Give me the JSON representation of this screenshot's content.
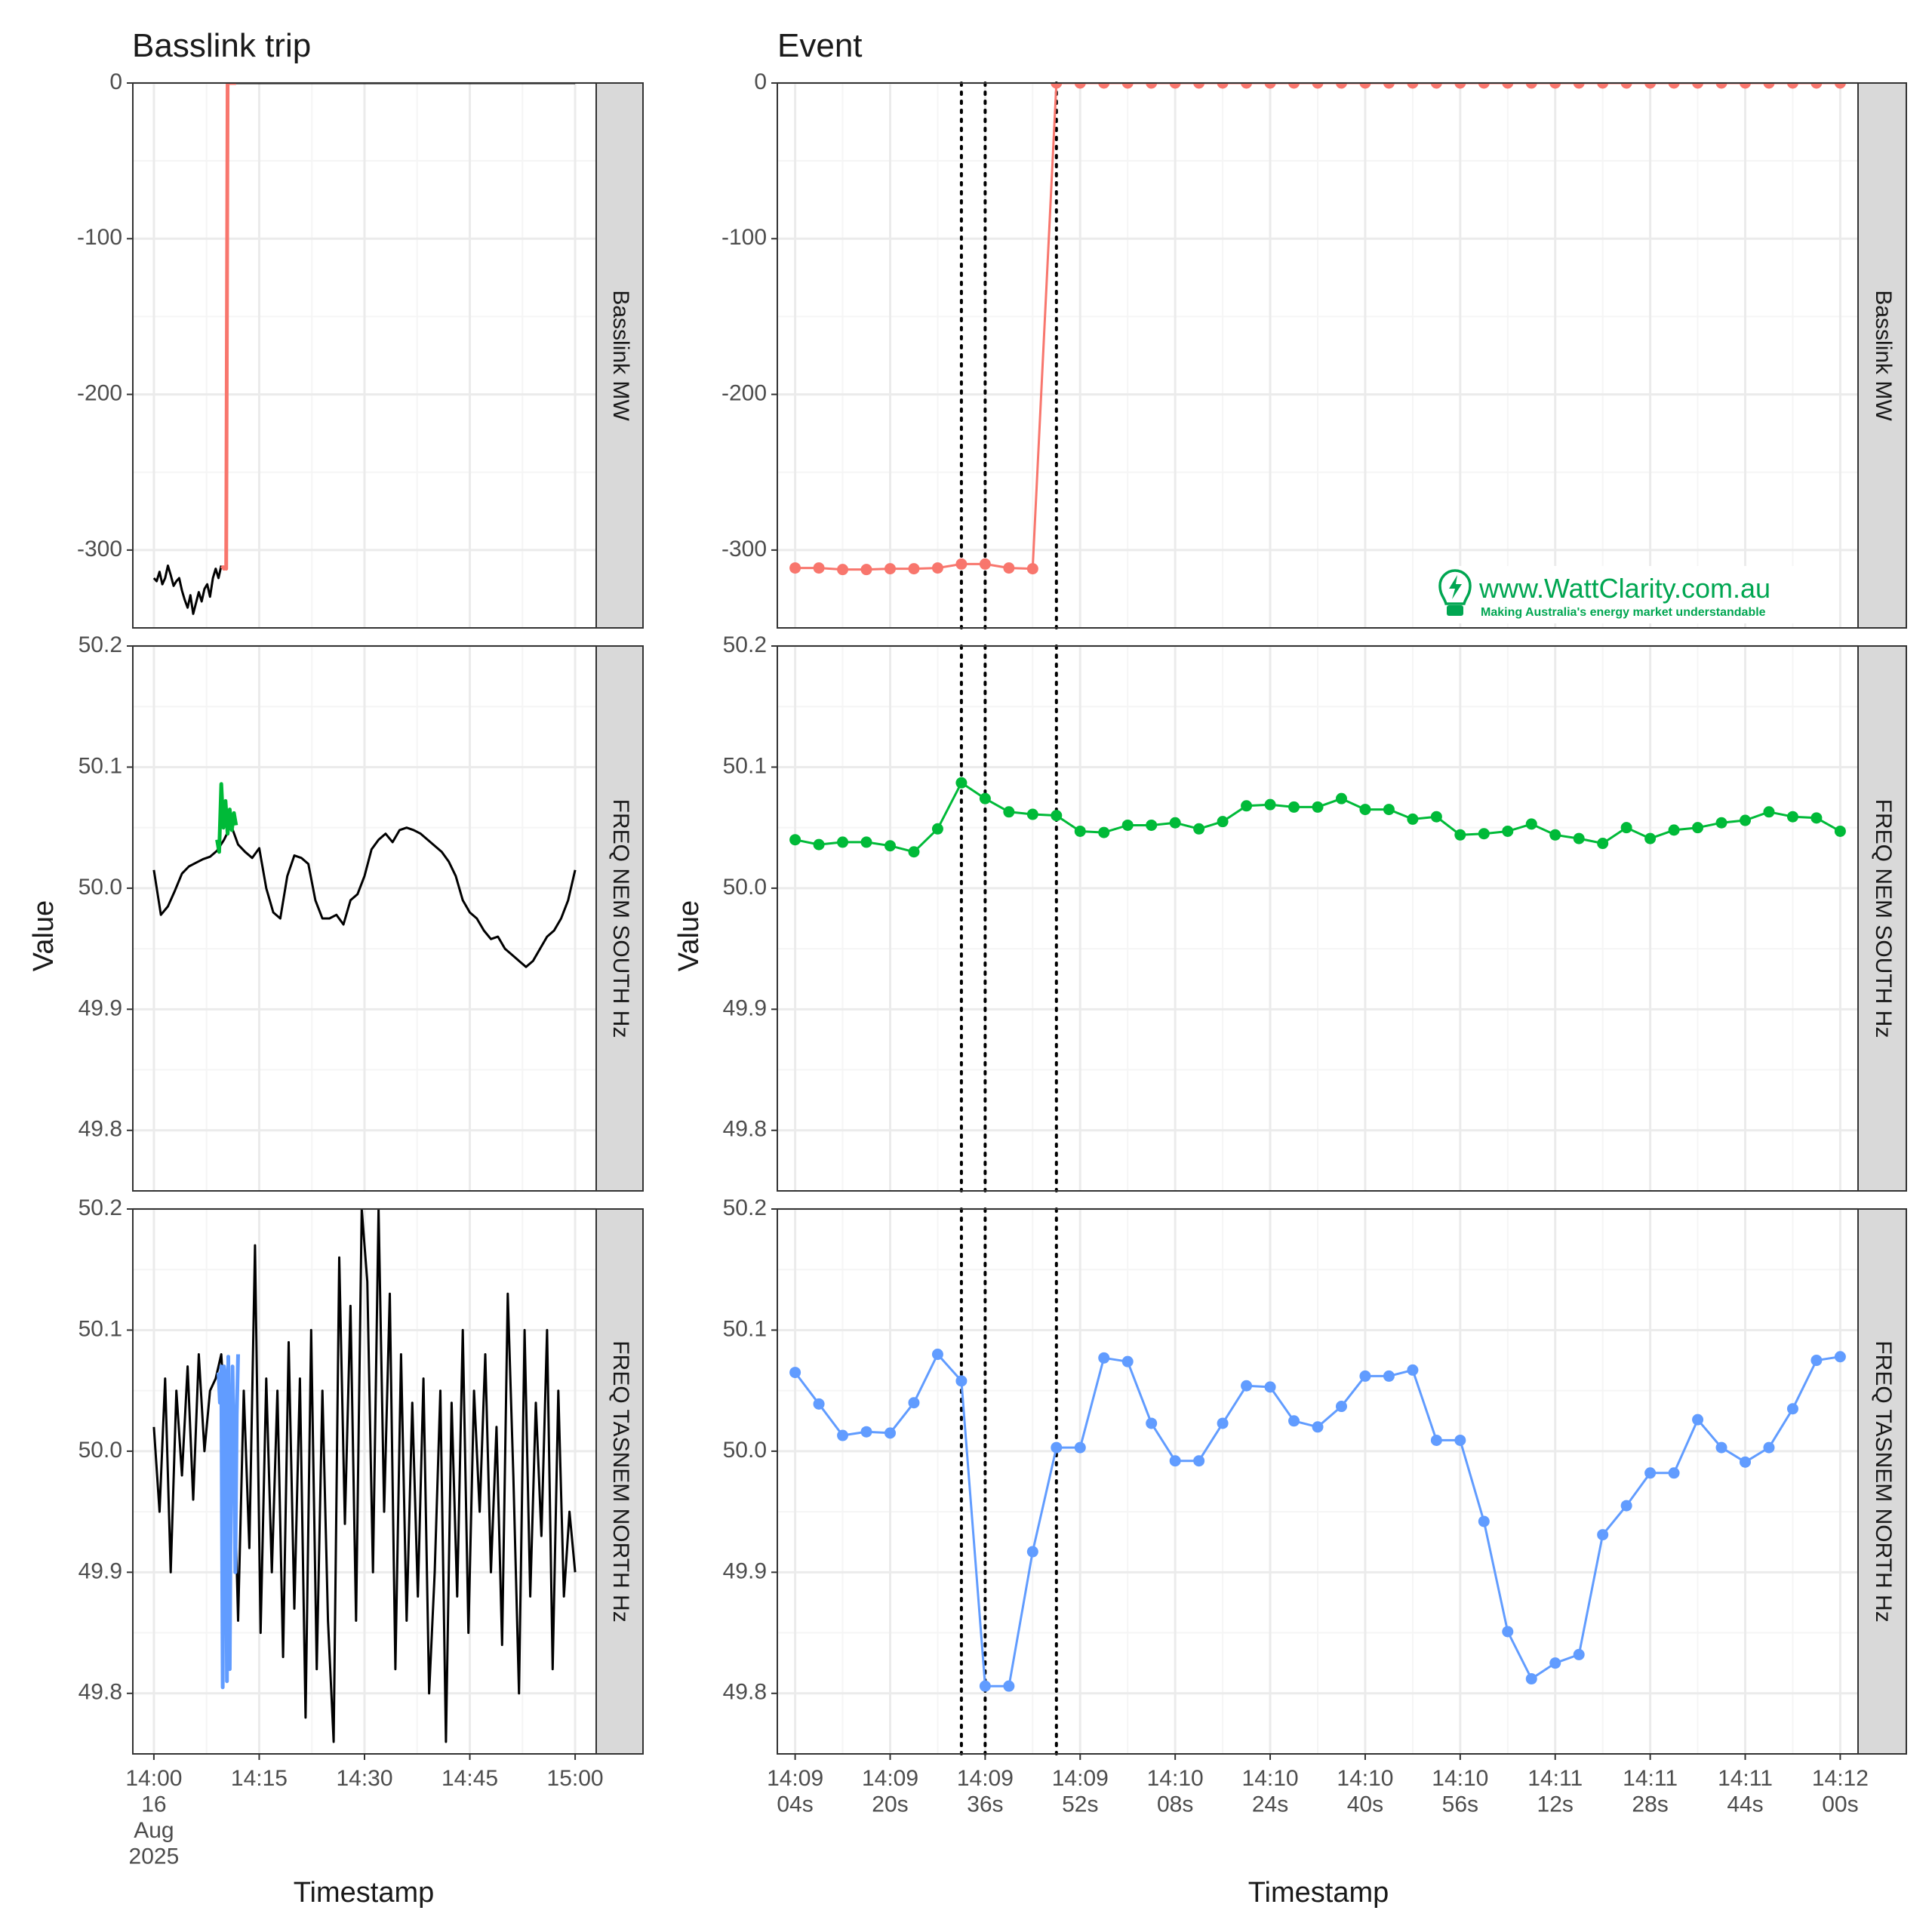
{
  "chart_data": [
    {
      "type": "line",
      "title": "Basslink trip",
      "xlabel": "Timestamp",
      "ylabel": "Value",
      "x_ticks": [
        "14:00\n16\nAug\n2025",
        "14:15",
        "14:30",
        "14:45",
        "15:00"
      ],
      "x_range_minutes": [
        0,
        60
      ],
      "facets": [
        {
          "strip": "Basslink MW",
          "ylim": [
            -350,
            0
          ],
          "y_ticks": [
            0,
            -100,
            -200,
            -300
          ],
          "series": [
            {
              "color": "#000000",
              "x_minutes": [
                0,
                0.4,
                0.8,
                1.2,
                1.6,
                2.0,
                2.4,
                2.8,
                3.2,
                3.6,
                4.0,
                4.4,
                4.8,
                5.2,
                5.6,
                6.0,
                6.4,
                6.8,
                7.2,
                7.6,
                8.0,
                8.4,
                8.8,
                9.2,
                9.6
              ],
              "values": [
                -318,
                -320,
                -314,
                -322,
                -318,
                -310,
                -316,
                -323,
                -320,
                -318,
                -326,
                -332,
                -337,
                -329,
                -341,
                -334,
                -327,
                -333,
                -325,
                -322,
                -330,
                -318,
                -312,
                -318,
                -310
              ]
            },
            {
              "color": "#F8766D",
              "x_minutes": [
                9.7,
                9.85,
                10.0,
                10.15,
                10.3,
                10.5,
                10.9,
                11.3,
                11.7
              ],
              "values": [
                -312,
                -311,
                -312,
                -311,
                -312,
                0,
                0,
                0,
                0
              ]
            },
            {
              "color": "#000000",
              "x_minutes": [
                11.7,
                20,
                30,
                40,
                50,
                60
              ],
              "values": [
                0,
                0,
                0,
                0,
                0,
                0
              ]
            }
          ]
        },
        {
          "strip": "FREQ NEM SOUTH Hz",
          "ylim": [
            49.75,
            50.2
          ],
          "y_ticks": [
            50.2,
            50.1,
            50.0,
            49.9,
            49.8
          ],
          "series": [
            {
              "color": "#000000",
              "x_minutes": [
                0,
                1,
                2,
                3,
                4,
                5,
                6,
                7,
                8,
                9,
                10,
                11,
                12,
                13,
                14,
                15,
                16,
                17,
                18,
                19,
                20,
                21,
                22,
                23,
                24,
                25,
                26,
                27,
                28,
                29,
                30,
                31,
                32,
                33,
                34,
                35,
                36,
                37,
                38,
                39,
                40,
                41,
                42,
                43,
                44,
                45,
                46,
                47,
                48,
                49,
                50,
                51,
                52,
                53,
                54,
                55,
                56,
                57,
                58,
                59,
                60
              ],
              "values": [
                50.015,
                49.978,
                49.985,
                49.998,
                50.012,
                50.018,
                50.021,
                50.024,
                50.026,
                50.031,
                50.04,
                50.052,
                50.036,
                50.03,
                50.025,
                50.033,
                50.0,
                49.98,
                49.975,
                50.01,
                50.027,
                50.025,
                50.02,
                49.99,
                49.975,
                49.975,
                49.978,
                49.97,
                49.99,
                49.995,
                50.01,
                50.032,
                50.04,
                50.045,
                50.038,
                50.048,
                50.05,
                50.048,
                50.045,
                50.04,
                50.035,
                50.03,
                50.022,
                50.01,
                49.99,
                49.98,
                49.975,
                49.965,
                49.958,
                49.96,
                49.95,
                49.945,
                49.94,
                49.935,
                49.94,
                49.95,
                49.96,
                49.965,
                49.975,
                49.99,
                50.015
              ]
            },
            {
              "color": "#00BA38",
              "x_minutes": [
                9.0,
                9.3,
                9.6,
                9.9,
                10.2,
                10.5,
                10.8,
                11.1,
                11.4,
                11.7
              ],
              "values": [
                50.04,
                50.03,
                50.086,
                50.05,
                50.072,
                50.045,
                50.065,
                50.048,
                50.062,
                50.052
              ]
            }
          ]
        },
        {
          "strip": "FREQ TASNEM NORTH Hz",
          "ylim": [
            49.75,
            50.2
          ],
          "y_ticks": [
            50.2,
            50.1,
            50.0,
            49.9,
            49.8
          ],
          "series": [
            {
              "color": "#000000",
              "x_minutes": [
                0,
                0.8,
                1.6,
                2.4,
                3.2,
                4.0,
                4.8,
                5.6,
                6.4,
                7.2,
                8.0,
                8.8,
                9.6,
                10.4,
                11.2,
                12.0,
                12.8,
                13.6,
                14.4,
                15.2,
                16.0,
                16.8,
                17.6,
                18.4,
                19.2,
                20.0,
                20.8,
                21.6,
                22.4,
                23.2,
                24.0,
                24.8,
                25.6,
                26.4,
                27.2,
                28.0,
                28.8,
                29.6,
                30.4,
                31.2,
                32.0,
                32.8,
                33.6,
                34.4,
                35.2,
                36.0,
                36.8,
                37.6,
                38.4,
                39.2,
                40.0,
                40.8,
                41.6,
                42.4,
                43.2,
                44.0,
                44.8,
                45.6,
                46.4,
                47.2,
                48.0,
                48.8,
                49.6,
                50.4,
                51.2,
                52.0,
                52.8,
                53.6,
                54.4,
                55.2,
                56.0,
                56.8,
                57.6,
                58.4,
                59.2,
                60.0
              ],
              "values": [
                50.02,
                49.95,
                50.06,
                49.9,
                50.05,
                49.98,
                50.07,
                49.96,
                50.08,
                50.0,
                50.05,
                50.06,
                50.08,
                50.0,
                50.04,
                49.86,
                50.05,
                49.92,
                50.17,
                49.85,
                50.06,
                49.9,
                50.05,
                49.83,
                50.09,
                49.87,
                50.06,
                49.78,
                50.1,
                49.82,
                50.05,
                49.86,
                49.76,
                50.16,
                49.94,
                50.12,
                49.86,
                50.2,
                50.14,
                49.9,
                50.2,
                49.95,
                50.13,
                49.82,
                50.08,
                49.86,
                50.04,
                49.88,
                50.06,
                49.8,
                49.9,
                50.05,
                49.76,
                50.04,
                49.88,
                50.1,
                49.85,
                50.05,
                49.95,
                50.08,
                49.9,
                50.02,
                49.84,
                50.13,
                49.98,
                49.8,
                50.1,
                49.88,
                50.04,
                49.93,
                50.1,
                49.82,
                50.05,
                49.88,
                49.95,
                49.9
              ]
            },
            {
              "color": "#619CFF",
              "x_minutes": [
                9.2,
                9.4,
                9.6,
                9.8,
                10.0,
                10.2,
                10.4,
                10.6,
                10.8,
                11.0,
                11.2,
                11.4,
                11.6,
                11.8,
                12.0
              ],
              "values": [
                50.065,
                50.04,
                50.07,
                49.805,
                50.07,
                50.06,
                49.81,
                50.078,
                49.82,
                50.0,
                50.07,
                50.0,
                49.9,
                50.03,
                50.08
              ]
            }
          ]
        }
      ]
    },
    {
      "type": "line",
      "title": "Event",
      "xlabel": "Timestamp",
      "ylabel": "Value",
      "x_unit": "seconds after 14:09:00",
      "x_range_s": [
        1,
        183
      ],
      "x_tick_values_s": [
        4,
        20,
        36,
        52,
        68,
        84,
        100,
        116,
        132,
        148,
        164,
        180
      ],
      "x_ticks": [
        "14:09\n04s",
        "14:09\n20s",
        "14:09\n36s",
        "14:09\n52s",
        "14:10\n08s",
        "14:10\n24s",
        "14:10\n40s",
        "14:10\n56s",
        "14:11\n12s",
        "14:11\n28s",
        "14:11\n44s",
        "14:12\n00s"
      ],
      "vertical_lines_s": [
        32,
        36,
        48
      ],
      "sample_x_s": [
        4,
        8,
        12,
        16,
        20,
        24,
        28,
        32,
        36,
        40,
        44,
        48,
        52,
        56,
        60,
        64,
        68,
        72,
        76,
        80,
        84,
        88,
        92,
        96,
        100,
        104,
        108,
        112,
        116,
        120,
        124,
        128,
        132,
        136,
        140,
        144,
        148,
        152,
        156,
        160,
        164,
        168,
        172,
        176,
        180
      ],
      "facets": [
        {
          "strip": "Basslink MW",
          "ylim": [
            -350,
            0
          ],
          "y_ticks": [
            0,
            -100,
            -200,
            -300
          ],
          "series": [
            {
              "color": "#F8766D",
              "values": [
                -311.5,
                -311.5,
                -312.5,
                -312.5,
                -312,
                -312,
                -311.5,
                -309,
                -309,
                -311.5,
                -312,
                0,
                0,
                0,
                0,
                0,
                0,
                0,
                0,
                0,
                0,
                0,
                0,
                0,
                0,
                0,
                0,
                0,
                0,
                0,
                0,
                0,
                0,
                0,
                0,
                0,
                0,
                0,
                0,
                0,
                0,
                0,
                0,
                0,
                0
              ]
            }
          ]
        },
        {
          "strip": "FREQ NEM SOUTH Hz",
          "ylim": [
            49.75,
            50.2
          ],
          "y_ticks": [
            50.2,
            50.1,
            50.0,
            49.9,
            49.8
          ],
          "series": [
            {
              "color": "#00BA38",
              "values": [
                50.04,
                50.036,
                50.038,
                50.038,
                50.035,
                50.03,
                50.049,
                50.087,
                50.074,
                50.063,
                50.061,
                50.06,
                50.047,
                50.046,
                50.052,
                50.052,
                50.054,
                50.049,
                50.055,
                50.068,
                50.069,
                50.067,
                50.067,
                50.074,
                50.065,
                50.065,
                50.057,
                50.059,
                50.044,
                50.045,
                50.047,
                50.053,
                50.044,
                50.041,
                50.037,
                50.05,
                50.041,
                50.048,
                50.05,
                50.054,
                50.056,
                50.063,
                50.059,
                50.058,
                50.047
              ]
            }
          ]
        },
        {
          "strip": "FREQ TASNEM NORTH Hz",
          "ylim": [
            49.75,
            50.2
          ],
          "y_ticks": [
            50.2,
            50.1,
            50.0,
            49.9,
            49.8
          ],
          "series": [
            {
              "color": "#619CFF",
              "values": [
                50.065,
                50.039,
                50.013,
                50.016,
                50.015,
                50.04,
                50.08,
                50.058,
                49.806,
                49.806,
                49.917,
                50.003,
                50.003,
                50.077,
                50.074,
                50.023,
                49.992,
                49.992,
                50.023,
                50.054,
                50.053,
                50.025,
                50.02,
                50.037,
                50.062,
                50.062,
                50.067,
                50.009,
                50.009,
                49.942,
                49.851,
                49.812,
                49.825,
                49.832,
                49.931,
                49.955,
                49.982,
                49.982,
                50.026,
                50.003,
                49.991,
                50.003,
                50.035,
                50.075,
                50.078
              ]
            }
          ]
        }
      ]
    }
  ],
  "watermark": {
    "url": "www.WattClarity.com.au",
    "tagline": "Making Australia's energy market understandable",
    "color": "#00A651"
  },
  "style": {
    "panel_border": "#333333",
    "grid_major": "#EBEBEB",
    "grid_minor": "#F5F5F5",
    "strip_fill": "#D9D9D9",
    "tick_text": "#4D4D4D"
  }
}
